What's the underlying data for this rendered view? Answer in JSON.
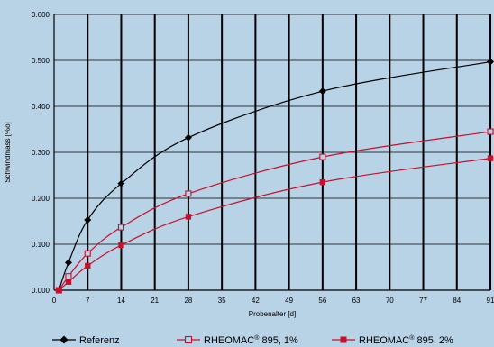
{
  "chart_data": {
    "type": "line",
    "title": "",
    "xlabel": "Probenalter [d]",
    "ylabel": "Schwindmass [%o]",
    "xlim": [
      0,
      91
    ],
    "ylim": [
      0,
      0.6
    ],
    "xticks": [
      "0",
      "7",
      "14",
      "21",
      "28",
      "35",
      "42",
      "49",
      "56",
      "63",
      "70",
      "77",
      "84",
      "91"
    ],
    "yticks": [
      "0.000",
      "0.100",
      "0.200",
      "0.300",
      "0.400",
      "0.500",
      "0.600"
    ],
    "grid": true,
    "legend_position": "bottom",
    "series": [
      {
        "name": "Referenz",
        "color": "#000000",
        "marker": "diamond-filled",
        "x": [
          1,
          3,
          7,
          14,
          28,
          56,
          91
        ],
        "y": [
          0.0,
          0.06,
          0.153,
          0.232,
          0.332,
          0.433,
          0.497
        ]
      },
      {
        "name": "RHEOMAC® 895, 1%",
        "legend_main": "RHEOMAC",
        "legend_sup": "®",
        "legend_rest": " 895, 1%",
        "color": "#c8102e",
        "marker": "square-open",
        "x": [
          1,
          3,
          7,
          14,
          28,
          56,
          91
        ],
        "y": [
          0.0,
          0.03,
          0.08,
          0.137,
          0.21,
          0.29,
          0.345
        ]
      },
      {
        "name": "RHEOMAC® 895, 2%",
        "legend_main": "RHEOMAC",
        "legend_sup": "®",
        "legend_rest": " 895, 2%",
        "color": "#c8102e",
        "marker": "square-filled",
        "x": [
          1,
          3,
          7,
          14,
          28,
          56,
          91
        ],
        "y": [
          0.0,
          0.018,
          0.053,
          0.098,
          0.16,
          0.235,
          0.287
        ]
      }
    ]
  }
}
